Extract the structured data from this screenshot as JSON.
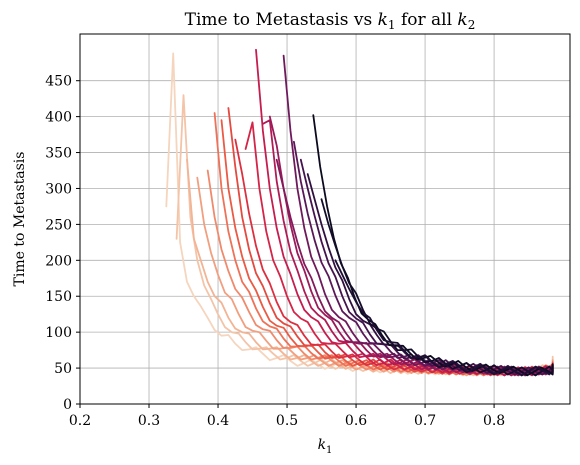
{
  "chart_data": {
    "type": "line",
    "title_main": "Time to Metastasis vs ",
    "title_k1": "k",
    "title_k1_sub": "1",
    "title_mid": " for all ",
    "title_k2": "k",
    "title_k2_sub": "2",
    "xlabel_var": "k",
    "xlabel_sub": "1",
    "ylabel": "Time to Metastasis",
    "xlim": [
      0.2,
      0.91
    ],
    "ylim": [
      0,
      515
    ],
    "x_ticks": [
      0.2,
      0.3,
      0.4,
      0.5,
      0.6,
      0.7,
      0.8
    ],
    "x_tick_labels": [
      "0.2",
      "0.3",
      "0.4",
      "0.5",
      "0.6",
      "0.7",
      "0.8"
    ],
    "y_ticks": [
      0,
      50,
      100,
      150,
      200,
      250,
      300,
      350,
      400,
      450
    ],
    "y_tick_labels": [
      "0",
      "50",
      "100",
      "150",
      "200",
      "250",
      "300",
      "350",
      "400",
      "450"
    ],
    "grid": true,
    "colormap": [
      "#f7d9c0",
      "#f5a17a",
      "#ef5b40",
      "#d8204a",
      "#a31a5a",
      "#6e1a5c",
      "#3a1246",
      "#0c0a1f"
    ],
    "series": [
      {
        "color": "#f5d5bd",
        "start": 0.325,
        "values": [
          275,
          488,
          225,
          170,
          150,
          130,
          120,
          108,
          95,
          90,
          84,
          80,
          76,
          73,
          70,
          66,
          64,
          62,
          60,
          58,
          57,
          56,
          55,
          54,
          53,
          52,
          52,
          51,
          50,
          50,
          49,
          49,
          48,
          48,
          48,
          47,
          47,
          47,
          46,
          46,
          46,
          46,
          45,
          45,
          45,
          45,
          45,
          45,
          45,
          45,
          45,
          45,
          46,
          46,
          47,
          48,
          50,
          52,
          55,
          58,
          62
        ]
      },
      {
        "color": "#f3c4a8",
        "start": 0.34,
        "values": [
          230,
          430,
          260,
          200,
          165,
          140,
          125,
          112,
          100,
          92,
          86,
          81,
          77,
          73,
          70,
          67,
          64,
          62,
          60,
          58,
          57,
          56,
          55,
          54,
          53,
          52,
          51,
          51,
          50,
          49,
          49,
          48,
          48,
          48,
          47,
          47,
          47,
          46,
          46,
          46,
          46,
          45,
          45,
          45,
          45,
          45,
          45,
          45,
          45,
          45,
          46,
          46,
          47,
          48,
          50,
          52,
          55,
          60
        ]
      },
      {
        "color": "#f2b494",
        "start": 0.355,
        "values": [
          340,
          230,
          200,
          170,
          150,
          135,
          120,
          110,
          100,
          92,
          86,
          81,
          77,
          73,
          70,
          67,
          64,
          62,
          60,
          58,
          57,
          56,
          55,
          54,
          53,
          52,
          51,
          50,
          50,
          49,
          49,
          48,
          48,
          47,
          47,
          47,
          46,
          46,
          46,
          46,
          45,
          45,
          45,
          45,
          45,
          45,
          45,
          45,
          45,
          46,
          46,
          47,
          48,
          50,
          53,
          58
        ]
      },
      {
        "color": "#f19f7f",
        "start": 0.37,
        "values": [
          315,
          250,
          210,
          180,
          155,
          140,
          125,
          112,
          102,
          94,
          88,
          82,
          77,
          73,
          70,
          67,
          64,
          62,
          60,
          58,
          57,
          55,
          54,
          53,
          52,
          52,
          51,
          50,
          50,
          49,
          49,
          48,
          48,
          47,
          47,
          47,
          46,
          46,
          46,
          45,
          45,
          45,
          45,
          45,
          45,
          45,
          45,
          45,
          46,
          46,
          47,
          48,
          50,
          55
        ]
      },
      {
        "color": "#f08a6c",
        "start": 0.385,
        "values": [
          325,
          260,
          215,
          185,
          160,
          142,
          128,
          115,
          104,
          96,
          89,
          83,
          78,
          74,
          70,
          67,
          64,
          62,
          60,
          58,
          57,
          55,
          54,
          53,
          52,
          51,
          51,
          50,
          50,
          49,
          48,
          48,
          48,
          47,
          47,
          46,
          46,
          46,
          46,
          45,
          45,
          45,
          45,
          45,
          45,
          45,
          46,
          46,
          47,
          48,
          50,
          53
        ]
      },
      {
        "color": "#ee7258",
        "start": 0.395,
        "values": [
          405,
          300,
          240,
          200,
          170,
          150,
          133,
          120,
          108,
          99,
          91,
          85,
          80,
          75,
          71,
          68,
          65,
          62,
          60,
          58,
          57,
          55,
          54,
          53,
          52,
          51,
          51,
          50,
          49,
          49,
          48,
          48,
          47,
          47,
          47,
          46,
          46,
          46,
          45,
          45,
          45,
          45,
          45,
          45,
          45,
          45,
          46,
          46,
          47,
          49,
          52
        ]
      },
      {
        "color": "#ea5a44",
        "start": 0.405,
        "values": [
          395,
          300,
          245,
          205,
          175,
          152,
          135,
          121,
          109,
          100,
          92,
          86,
          80,
          76,
          72,
          68,
          65,
          63,
          60,
          58,
          57,
          55,
          54,
          53,
          52,
          51,
          50,
          50,
          49,
          49,
          48,
          48,
          47,
          47,
          46,
          46,
          46,
          46,
          45,
          45,
          45,
          45,
          45,
          45,
          45,
          46,
          46,
          47,
          49,
          52
        ]
      },
      {
        "color": "#e44a3f",
        "start": 0.415,
        "values": [
          412,
          330,
          260,
          215,
          182,
          158,
          140,
          125,
          112,
          102,
          94,
          87,
          81,
          77,
          72,
          69,
          66,
          63,
          61,
          59,
          57,
          56,
          54,
          53,
          52,
          51,
          50,
          50,
          49,
          48,
          48,
          47,
          47,
          47,
          46,
          46,
          46,
          45,
          45,
          45,
          45,
          45,
          45,
          45,
          46,
          46,
          47,
          49,
          52
        ]
      },
      {
        "color": "#dc3040",
        "start": 0.425,
        "values": [
          368,
          320,
          265,
          220,
          187,
          162,
          142,
          127,
          114,
          104,
          95,
          88,
          82,
          77,
          73,
          69,
          66,
          63,
          61,
          59,
          57,
          56,
          54,
          53,
          52,
          51,
          50,
          50,
          49,
          48,
          48,
          47,
          47,
          46,
          46,
          46,
          46,
          45,
          45,
          45,
          45,
          45,
          45,
          46,
          46,
          47,
          49,
          53
        ]
      },
      {
        "color": "#d42448",
        "start": 0.44,
        "values": [
          355,
          392,
          300,
          240,
          200,
          172,
          150,
          133,
          119,
          108,
          98,
          90,
          84,
          78,
          74,
          70,
          67,
          64,
          61,
          59,
          57,
          56,
          54,
          53,
          52,
          51,
          50,
          49,
          49,
          48,
          48,
          47,
          47,
          46,
          46,
          46,
          45,
          45,
          45,
          45,
          45,
          45,
          46,
          46,
          47,
          50
        ]
      },
      {
        "color": "#c51d50",
        "start": 0.455,
        "values": [
          493,
          380,
          300,
          245,
          205,
          175,
          153,
          136,
          121,
          109,
          99,
          91,
          84,
          79,
          74,
          70,
          67,
          64,
          61,
          59,
          57,
          56,
          54,
          53,
          52,
          51,
          50,
          49,
          49,
          48,
          47,
          47,
          47,
          46,
          46,
          46,
          45,
          45,
          45,
          45,
          45,
          46,
          46,
          47,
          50
        ]
      },
      {
        "color": "#b01b56",
        "start": 0.465,
        "values": [
          390,
          395,
          310,
          255,
          212,
          180,
          157,
          139,
          124,
          111,
          101,
          93,
          86,
          80,
          75,
          71,
          67,
          64,
          62,
          60,
          58,
          56,
          55,
          53,
          52,
          51,
          50,
          49,
          49,
          48,
          47,
          47,
          46,
          46,
          46,
          45,
          45,
          45,
          45,
          45,
          46,
          46,
          47,
          50
        ]
      },
      {
        "color": "#9a1a5a",
        "start": 0.475,
        "values": [
          400,
          360,
          300,
          250,
          210,
          180,
          157,
          139,
          124,
          111,
          101,
          93,
          86,
          80,
          75,
          71,
          67,
          64,
          62,
          60,
          58,
          56,
          55,
          53,
          52,
          51,
          50,
          49,
          48,
          48,
          47,
          47,
          46,
          46,
          46,
          45,
          45,
          45,
          45,
          46,
          46,
          47,
          50
        ]
      },
      {
        "color": "#841a5c",
        "start": 0.485,
        "values": [
          340,
          300,
          260,
          225,
          195,
          170,
          150,
          134,
          120,
          108,
          99,
          91,
          84,
          79,
          74,
          70,
          67,
          64,
          61,
          59,
          57,
          56,
          54,
          53,
          52,
          51,
          50,
          49,
          48,
          48,
          47,
          46,
          46,
          46,
          45,
          45,
          45,
          45,
          46,
          46,
          47,
          50
        ]
      },
      {
        "color": "#6f195c",
        "start": 0.495,
        "values": [
          485,
          380,
          300,
          245,
          205,
          176,
          153,
          136,
          121,
          109,
          99,
          91,
          84,
          78,
          74,
          70,
          66,
          63,
          61,
          59,
          57,
          55,
          54,
          53,
          52,
          51,
          50,
          49,
          48,
          48,
          47,
          46,
          46,
          46,
          45,
          45,
          45,
          46,
          46,
          47,
          50
        ]
      },
      {
        "color": "#5a1758",
        "start": 0.51,
        "values": [
          365,
          310,
          265,
          228,
          197,
          172,
          151,
          134,
          120,
          108,
          98,
          90,
          84,
          78,
          73,
          69,
          66,
          63,
          60,
          58,
          57,
          55,
          54,
          53,
          52,
          51,
          50,
          49,
          48,
          47,
          47,
          46,
          46,
          45,
          45,
          45,
          46,
          46,
          47,
          50
        ]
      },
      {
        "color": "#45134e",
        "start": 0.52,
        "values": [
          340,
          300,
          262,
          226,
          196,
          171,
          150,
          133,
          119,
          107,
          97,
          89,
          83,
          77,
          72,
          68,
          65,
          62,
          60,
          58,
          56,
          55,
          53,
          52,
          51,
          50,
          49,
          48,
          48,
          47,
          46,
          46,
          45,
          45,
          45,
          46,
          46,
          47,
          50
        ]
      },
      {
        "color": "#30103f",
        "start": 0.53,
        "values": [
          320,
          285,
          250,
          218,
          190,
          166,
          146,
          130,
          116,
          105,
          96,
          88,
          82,
          76,
          72,
          68,
          64,
          62,
          59,
          57,
          56,
          54,
          53,
          52,
          51,
          50,
          49,
          48,
          47,
          47,
          46,
          45,
          45,
          45,
          46,
          46,
          47,
          49
        ]
      },
      {
        "color": "#0c0a1f",
        "start": 0.538,
        "values": [
          402,
          330,
          275,
          230,
          196,
          170,
          148,
          131,
          117,
          105,
          95,
          87,
          81,
          75,
          71,
          67,
          64,
          61,
          59,
          57,
          55,
          54,
          52,
          51,
          50,
          49,
          48,
          48,
          47,
          46,
          46,
          45,
          45,
          45,
          46,
          46,
          47,
          49
        ]
      },
      {
        "color": "#140d2a",
        "start": 0.55,
        "values": [
          285,
          250,
          220,
          192,
          168,
          148,
          131,
          117,
          105,
          95,
          87,
          80,
          75,
          70,
          66,
          63,
          60,
          58,
          56,
          54,
          53,
          51,
          50,
          49,
          48,
          48,
          47,
          46,
          46,
          45,
          45,
          45,
          46,
          46,
          47,
          48
        ]
      },
      {
        "color": "#1d0f33",
        "start": 0.57,
        "values": [
          200,
          180,
          160,
          142,
          127,
          114,
          103,
          94,
          86,
          79,
          74,
          69,
          65,
          61,
          58,
          56,
          54,
          52,
          51,
          49,
          48,
          48,
          47,
          46,
          46,
          45,
          45,
          45,
          46,
          46,
          47,
          48
        ]
      }
    ]
  }
}
